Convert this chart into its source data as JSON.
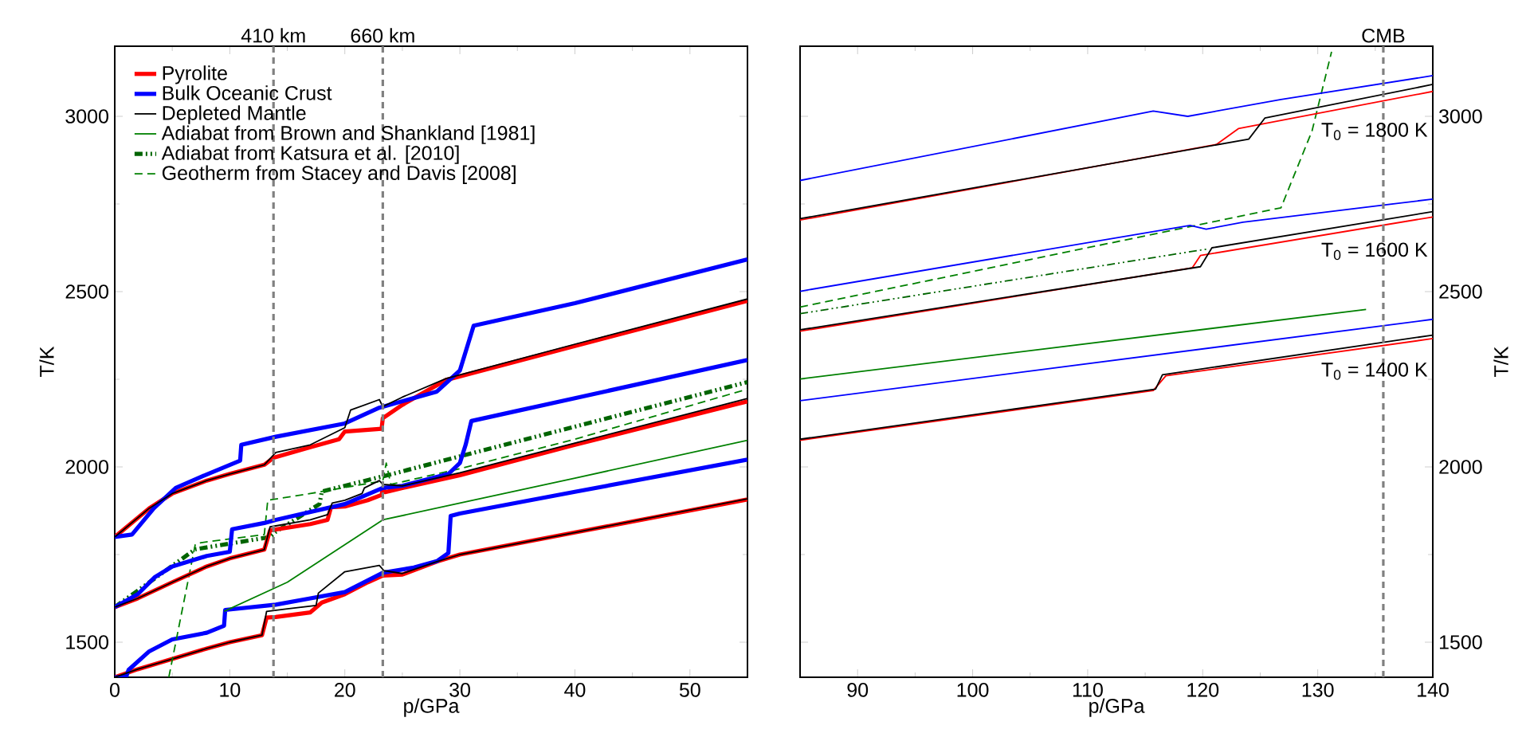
{
  "chart_data": [
    {
      "type": "line",
      "xlabel": "p/GPa",
      "ylabel": "T/K",
      "xlim": [
        0,
        55
      ],
      "ylim": [
        1400,
        3200
      ],
      "xticks": [
        0,
        10,
        20,
        30,
        40,
        50
      ],
      "yticks": [
        1500,
        2000,
        2500,
        3000
      ],
      "legend": "top left",
      "ref_lines": [
        {
          "axis": "x",
          "value": 13.8,
          "label": "410 km",
          "color": "#808080",
          "line_style": "dashed"
        },
        {
          "axis": "x",
          "value": 23.3,
          "label": "660 km",
          "color": "#808080",
          "line_style": "dashed"
        }
      ],
      "series": [
        {
          "name": "Pyrolite",
          "color": "#ff0000",
          "x": [
            0,
            2,
            5,
            8,
            10,
            12.8,
            13.2,
            14,
            17,
            18,
            20,
            22,
            23.3,
            25,
            28,
            30,
            40,
            55
          ],
          "values": [
            1400,
            1423,
            1452,
            1482,
            1500,
            1520,
            1570,
            1572,
            1585,
            1613,
            1637,
            1671,
            1690,
            1693,
            1730,
            1750,
            1813,
            1907
          ]
        },
        {
          "name": "Bulk Oceanic Crust",
          "color": "#0000ff",
          "x": [
            0,
            1,
            1.2,
            3,
            5,
            8,
            9.5,
            9.6,
            14,
            17,
            20,
            23.3,
            26,
            28,
            29,
            29.2,
            30,
            40,
            55
          ],
          "values": [
            1400,
            1402,
            1421,
            1474,
            1508,
            1527,
            1547,
            1592,
            1607,
            1625,
            1643,
            1698,
            1713,
            1731,
            1754,
            1860,
            1867,
            1929,
            2021
          ]
        },
        {
          "name": "Depleted Mantle",
          "color": "#000000",
          "x": [
            0,
            2,
            5,
            8,
            10,
            12.8,
            13.2,
            15,
            17.5,
            17.7,
            20,
            23,
            23.4,
            25,
            28,
            30,
            40,
            55
          ],
          "values": [
            1400,
            1423,
            1452,
            1482,
            1500,
            1520,
            1588,
            1595,
            1605,
            1640,
            1701,
            1719,
            1704,
            1696,
            1730,
            1750,
            1813,
            1909
          ]
        },
        {
          "name": "Adiabat from Brown and Shankland [1981]",
          "color": "#008000",
          "x": [
            9.5,
            15,
            23.3,
            30,
            40,
            55
          ],
          "values": [
            1588,
            1671,
            1849,
            1897,
            1968,
            2076
          ]
        },
        {
          "name": "Adiabat from Katsura et al. [2010]",
          "color": "#006400",
          "line_style": "dashdotted",
          "x": [
            0,
            7,
            13.5,
            14,
            17.8,
            18,
            23.3,
            40,
            55
          ],
          "values": [
            1600,
            1765,
            1800,
            1815,
            1894,
            1930,
            1973,
            2115,
            2242
          ]
        },
        {
          "name": "Geotherm from Stacey and Davis [2008]",
          "color": "#008000",
          "line_style": "dashed",
          "x": [
            4.7,
            7,
            7.5,
            13,
            13.3,
            17,
            23.3,
            23.6,
            24,
            30,
            40,
            55
          ],
          "values": [
            1400,
            1779,
            1784,
            1807,
            1905,
            1924,
            1960,
            2011,
            1950,
            1995,
            2079,
            2222
          ]
        },
        {
          "color": "#ff0000",
          "x": [
            0,
            2,
            5,
            8,
            10,
            13,
            13.5,
            17,
            18.5,
            18.8,
            20,
            22,
            23.2,
            23.3,
            23.5,
            25,
            30,
            40,
            55
          ],
          "values": [
            1600,
            1625,
            1671,
            1716,
            1739,
            1764,
            1819,
            1837,
            1849,
            1885,
            1887,
            1905,
            1920,
            1940,
            1928,
            1940,
            1976,
            2063,
            2187
          ]
        },
        {
          "color": "#0000ff",
          "x": [
            0,
            2,
            3.5,
            5,
            8,
            10,
            10.2,
            13,
            14,
            20,
            23.3,
            25,
            29,
            30,
            30.5,
            31,
            35,
            40,
            55
          ],
          "values": [
            1600,
            1637,
            1686,
            1716,
            1746,
            1758,
            1822,
            1840,
            1849,
            1894,
            1940,
            1946,
            1980,
            2011,
            2063,
            2131,
            2160,
            2196,
            2305
          ]
        },
        {
          "color": "#000000",
          "x": [
            0,
            2,
            5,
            8,
            10,
            13,
            13.5,
            17,
            18.5,
            18.9,
            20,
            21.5,
            21.7,
            23,
            23.3,
            25,
            30,
            40,
            55
          ],
          "values": [
            1600,
            1625,
            1671,
            1716,
            1739,
            1764,
            1829,
            1849,
            1864,
            1897,
            1905,
            1924,
            1940,
            1961,
            1950,
            1946,
            1983,
            2068,
            2195
          ]
        },
        {
          "color": "#ff0000",
          "x": [
            0,
            3,
            5,
            8,
            10,
            13,
            13.8,
            17,
            19.5,
            20,
            23.2,
            23.3,
            25,
            28.8,
            40,
            55
          ],
          "values": [
            1800,
            1882,
            1924,
            1961,
            1980,
            2006,
            2026,
            2056,
            2079,
            2101,
            2109,
            2139,
            2177,
            2248,
            2345,
            2474
          ]
        },
        {
          "color": "#0000ff",
          "x": [
            0,
            1.5,
            3.4,
            5.3,
            7.6,
            10.9,
            11,
            14,
            20,
            23,
            28,
            30,
            31.2,
            40,
            55
          ],
          "values": [
            1800,
            1807,
            1882,
            1940,
            1973,
            2018,
            2063,
            2086,
            2124,
            2169,
            2215,
            2275,
            2403,
            2467,
            2592
          ]
        },
        {
          "color": "#000000",
          "x": [
            0,
            3,
            5,
            8,
            10,
            13,
            14,
            17,
            20,
            20.5,
            23,
            23.3,
            25,
            28.8,
            40,
            55
          ],
          "values": [
            1800,
            1882,
            1924,
            1961,
            1980,
            2006,
            2041,
            2063,
            2112,
            2162,
            2192,
            2172,
            2199,
            2252,
            2350,
            2479
          ]
        }
      ]
    },
    {
      "type": "line",
      "xlabel": "p/GPa",
      "ylabel": "T/K",
      "xlim": [
        85,
        140
      ],
      "ylim": [
        1400,
        3200
      ],
      "xticks": [
        90,
        100,
        110,
        120,
        130,
        140
      ],
      "yticks": [
        1500,
        2000,
        2500,
        3000
      ],
      "legend": false,
      "ref_lines": [
        {
          "axis": "x",
          "value": 135.7,
          "label": "CMB",
          "color": "#808080",
          "line_style": "dashed"
        }
      ],
      "annotations": [
        "T$_{0}$ = 1800 K",
        "T$_{0}$ = 1600 K",
        "T$_{0}$ = 1400 K"
      ],
      "series": [
        {
          "color": "#ff0000",
          "x": [
            85,
            115.7,
            116.8,
            140
          ],
          "values": [
            2076,
            2218,
            2260,
            2366
          ]
        },
        {
          "color": "#0000ff",
          "x": [
            85,
            140
          ],
          "values": [
            2189,
            2421
          ]
        },
        {
          "color": "#000000",
          "x": [
            85,
            115.9,
            116.5,
            140
          ],
          "values": [
            2079,
            2222,
            2263,
            2376
          ]
        },
        {
          "color": "#008000",
          "x": [
            85,
            134.2
          ],
          "values": [
            2251,
            2449
          ]
        },
        {
          "color": "#006400",
          "line_style": "dashdotted",
          "x": [
            85,
            120.5
          ],
          "values": [
            2437,
            2622
          ]
        },
        {
          "color": "#008000",
          "line_style": "dashed",
          "x": [
            85,
            126.8,
            129.5,
            131.2
          ],
          "values": [
            2456,
            2739,
            2958,
            3184
          ]
        },
        {
          "color": "#ff0000",
          "x": [
            85,
            119.1,
            119.8,
            140
          ],
          "values": [
            2387,
            2568,
            2603,
            2713
          ]
        },
        {
          "color": "#0000ff",
          "x": [
            85,
            118.9,
            120.3,
            123.5,
            140
          ],
          "values": [
            2501,
            2689,
            2678,
            2698,
            2764
          ]
        },
        {
          "color": "#000000",
          "x": [
            85,
            119.8,
            120.8,
            140
          ],
          "values": [
            2391,
            2571,
            2625,
            2728
          ]
        },
        {
          "color": "#ff0000",
          "x": [
            85,
            121.2,
            123.1,
            140
          ],
          "values": [
            2704,
            2920,
            2965,
            3071
          ]
        },
        {
          "color": "#0000ff",
          "x": [
            85,
            115.7,
            118.7,
            126.8,
            140
          ],
          "values": [
            2817,
            3015,
            3000,
            3048,
            3116
          ]
        },
        {
          "color": "#000000",
          "x": [
            85,
            124,
            125.4,
            140
          ],
          "values": [
            2708,
            2935,
            2995,
            3091
          ]
        }
      ]
    }
  ]
}
